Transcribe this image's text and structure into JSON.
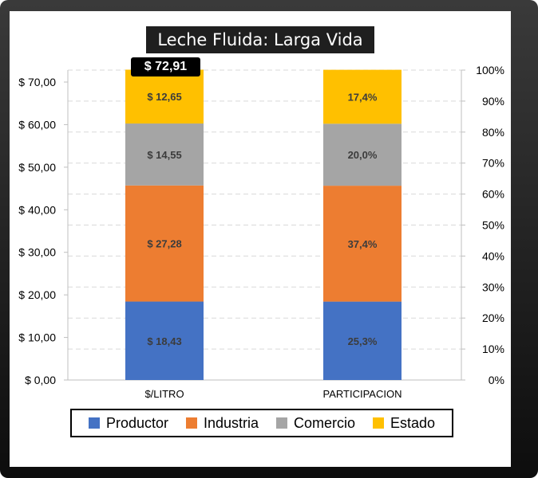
{
  "chart_data": {
    "type": "bar",
    "stacked": true,
    "title": "Leche Fluida: Larga Vida",
    "categories": [
      "$/LITRO",
      "PARTICIPACION"
    ],
    "series": [
      {
        "name": "Productor",
        "values": [
          18.43,
          25.3
        ],
        "labels": [
          "$ 18,43",
          "25,3%"
        ],
        "color": "#4472c4"
      },
      {
        "name": "Industria",
        "values": [
          27.28,
          37.4
        ],
        "labels": [
          "$ 27,28",
          "37,4%"
        ],
        "color": "#ed7d31"
      },
      {
        "name": "Comercio",
        "values": [
          14.55,
          20.0
        ],
        "labels": [
          "$ 14,55",
          "20,0%"
        ],
        "color": "#a5a5a5"
      },
      {
        "name": "Estado",
        "values": [
          12.65,
          17.4
        ],
        "labels": [
          "$ 12,65",
          "17,4%"
        ],
        "color": "#ffc000"
      }
    ],
    "total_label": "$ 72,91",
    "y_left": {
      "min": 0,
      "max": 70,
      "step": 10,
      "tick_labels": [
        "$ 0,00",
        "$ 10,00",
        "$ 20,00",
        "$ 30,00",
        "$ 40,00",
        "$ 50,00",
        "$ 60,00",
        "$ 70,00"
      ]
    },
    "y_right": {
      "min": 0,
      "max": 100,
      "step": 10,
      "tick_labels": [
        "0%",
        "10%",
        "20%",
        "30%",
        "40%",
        "50%",
        "60%",
        "70%",
        "80%",
        "90%",
        "100%"
      ]
    },
    "grid": true,
    "legend_position": "bottom"
  }
}
